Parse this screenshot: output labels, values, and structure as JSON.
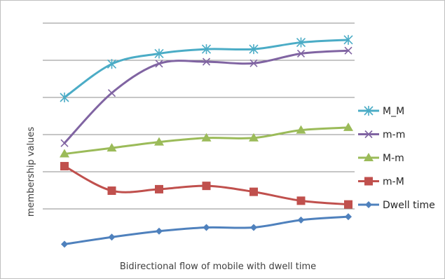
{
  "chart_data": {
    "type": "line",
    "xlabel": "Bidirectional flow of mobile with dwell time",
    "ylabel": "membership values",
    "ylim": [
      0,
      6
    ],
    "grid": true,
    "legend_position": "right",
    "x": [
      1,
      2,
      3,
      4,
      5,
      6,
      7
    ],
    "series": [
      {
        "name": "M_M",
        "color": "#4bacc6",
        "marker": "star",
        "values": [
          4.0,
          4.9,
          5.18,
          5.3,
          5.3,
          5.48,
          5.55
        ]
      },
      {
        "name": "m-m",
        "color": "#8064a2",
        "marker": "x",
        "values": [
          2.77,
          4.12,
          4.91,
          4.96,
          4.92,
          5.18,
          5.26
        ]
      },
      {
        "name": "M-m",
        "color": "#9bbb59",
        "marker": "triangle",
        "values": [
          2.48,
          2.64,
          2.8,
          2.91,
          2.91,
          3.12,
          3.19
        ]
      },
      {
        "name": "m-M",
        "color": "#c0504d",
        "marker": "square",
        "values": [
          2.15,
          1.49,
          1.53,
          1.62,
          1.46,
          1.22,
          1.12
        ]
      },
      {
        "name": "Dwell time",
        "color": "#4f81bd",
        "marker": "diamond",
        "values": [
          0.05,
          0.24,
          0.4,
          0.5,
          0.5,
          0.7,
          0.79
        ]
      }
    ]
  }
}
